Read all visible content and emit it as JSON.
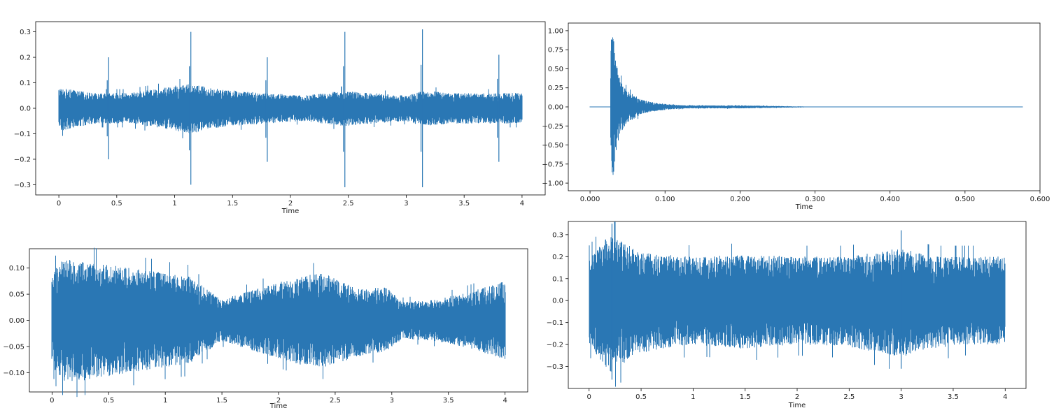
{
  "figure": {
    "wave_color": "#2a77b4",
    "background": "#ffffff"
  },
  "chart_data": [
    {
      "type": "line",
      "panel": "top-left",
      "title": "",
      "xlabel": "Time",
      "ylabel": "",
      "xlim": [
        -0.2,
        4.2
      ],
      "ylim": [
        -0.34,
        0.34
      ],
      "xticks": [
        0,
        0.5,
        1,
        1.5,
        2,
        2.5,
        3,
        3.5,
        4
      ],
      "xtick_labels": [
        "0",
        "0.5",
        "1",
        "1.5",
        "2",
        "2.5",
        "3",
        "3.5",
        "4"
      ],
      "yticks": [
        -0.3,
        -0.2,
        -0.1,
        0.0,
        0.1,
        0.2,
        0.3
      ],
      "ytick_labels": [
        "−0.3",
        "−0.2",
        "−0.1",
        "0.0",
        "0.1",
        "0.2",
        "0.3"
      ],
      "grid": false,
      "series": [
        {
          "x_range": [
            0,
            4
          ],
          "envelope": {
            "t": [
              0,
              0.3,
              0.43,
              0.6,
              0.9,
              1.14,
              1.3,
              1.5,
              1.8,
              2.1,
              2.47,
              2.7,
              3.0,
              3.14,
              3.4,
              3.6,
              3.8,
              4.0
            ],
            "upper": [
              0.08,
              0.06,
              0.06,
              0.06,
              0.08,
              0.1,
              0.08,
              0.07,
              0.06,
              0.05,
              0.07,
              0.06,
              0.05,
              0.07,
              0.06,
              0.06,
              0.06,
              0.06
            ],
            "lower": [
              -0.09,
              -0.06,
              -0.06,
              -0.06,
              -0.08,
              -0.1,
              -0.08,
              -0.07,
              -0.06,
              -0.05,
              -0.07,
              -0.06,
              -0.05,
              -0.07,
              -0.06,
              -0.06,
              -0.06,
              -0.06
            ]
          },
          "spikes": [
            {
              "t": 0.43,
              "max": 0.2,
              "min": -0.2
            },
            {
              "t": 1.14,
              "max": 0.3,
              "min": -0.3
            },
            {
              "t": 1.8,
              "max": 0.2,
              "min": -0.21
            },
            {
              "t": 2.47,
              "max": 0.3,
              "min": -0.31
            },
            {
              "t": 3.14,
              "max": 0.31,
              "min": -0.31
            },
            {
              "t": 3.8,
              "max": 0.21,
              "min": -0.21
            }
          ]
        }
      ]
    },
    {
      "type": "line",
      "panel": "top-right",
      "title": "",
      "xlabel": "Time",
      "ylabel": "",
      "xlim": [
        -0.029,
        0.6
      ],
      "ylim": [
        -1.1,
        1.1
      ],
      "xticks": [
        0.0,
        0.1,
        0.2,
        0.3,
        0.4,
        0.5,
        0.6
      ],
      "xtick_labels": [
        "0.000",
        "0.100",
        "0.200",
        "0.300",
        "0.400",
        "0.500",
        "0.600"
      ],
      "yticks": [
        -1.0,
        -0.75,
        -0.5,
        -0.25,
        0.0,
        0.25,
        0.5,
        0.75,
        1.0
      ],
      "ytick_labels": [
        "−1.00",
        "−0.75",
        "−0.50",
        "−0.25",
        "0.00",
        "0.25",
        "0.50",
        "0.75",
        "1.00"
      ],
      "grid": false,
      "series": [
        {
          "x_range": [
            0,
            0.577
          ],
          "envelope": {
            "t": [
              0,
              0.027,
              0.028,
              0.03,
              0.035,
              0.04,
              0.05,
              0.06,
              0.07,
              0.09,
              0.11,
              0.13,
              0.2,
              0.26,
              0.3,
              0.4,
              0.577
            ],
            "upper": [
              0.0,
              0.0,
              0.9,
              1.0,
              0.6,
              0.35,
              0.2,
              0.15,
              0.09,
              0.05,
              0.03,
              0.02,
              0.02,
              0.01,
              0.003,
              0.002,
              0.001
            ],
            "lower": [
              0.0,
              0.0,
              -0.9,
              -1.0,
              -0.6,
              -0.35,
              -0.2,
              -0.15,
              -0.09,
              -0.05,
              -0.03,
              -0.02,
              -0.02,
              -0.01,
              -0.003,
              -0.002,
              -0.001
            ]
          },
          "spikes": []
        }
      ]
    },
    {
      "type": "line",
      "panel": "bottom-left",
      "title": "",
      "xlabel": "Time",
      "ylabel": "",
      "xlim": [
        -0.2,
        4.2
      ],
      "ylim": [
        -0.137,
        0.137
      ],
      "xticks": [
        0,
        0.5,
        1,
        1.5,
        2,
        2.5,
        3,
        3.5,
        4
      ],
      "xtick_labels": [
        "0",
        "0.5",
        "1",
        "1.5",
        "2",
        "2.5",
        "3",
        "3.5",
        "4"
      ],
      "yticks": [
        -0.1,
        -0.05,
        0.0,
        0.05,
        0.1
      ],
      "ytick_labels": [
        "−0.10",
        "−0.05",
        "0.00",
        "0.05",
        "0.10"
      ],
      "grid": false,
      "series": [
        {
          "x_range": [
            0,
            4
          ],
          "envelope": {
            "t": [
              0,
              0.05,
              0.15,
              0.4,
              0.7,
              1.0,
              1.2,
              1.5,
              1.8,
              2.2,
              2.4,
              2.7,
              2.95,
              3.1,
              3.4,
              3.7,
              4.0
            ],
            "upper": [
              0.08,
              0.11,
              0.12,
              0.11,
              0.1,
              0.09,
              0.085,
              0.04,
              0.06,
              0.085,
              0.09,
              0.06,
              0.065,
              0.035,
              0.04,
              0.055,
              0.075
            ],
            "lower": [
              -0.08,
              -0.11,
              -0.12,
              -0.11,
              -0.1,
              -0.09,
              -0.085,
              -0.04,
              -0.06,
              -0.085,
              -0.09,
              -0.07,
              -0.06,
              -0.035,
              -0.04,
              -0.055,
              -0.075
            ]
          },
          "spikes": []
        }
      ]
    },
    {
      "type": "line",
      "panel": "bottom-right",
      "title": "",
      "xlabel": "Time",
      "ylabel": "",
      "xlim": [
        -0.2,
        4.2
      ],
      "ylim": [
        -0.4,
        0.36
      ],
      "xticks": [
        0,
        0.5,
        1,
        1.5,
        2,
        2.5,
        3,
        3.5,
        4
      ],
      "xtick_labels": [
        "0",
        "0.5",
        "1",
        "1.5",
        "2",
        "2.5",
        "3",
        "3.5",
        "4"
      ],
      "yticks": [
        -0.3,
        -0.2,
        -0.1,
        0.0,
        0.1,
        0.2,
        0.3
      ],
      "ytick_labels": [
        "−0.3",
        "−0.2",
        "−0.1",
        "0.0",
        "0.1",
        "0.2",
        "0.3"
      ],
      "grid": false,
      "series": [
        {
          "x_range": [
            0,
            4
          ],
          "envelope": {
            "t": [
              0,
              0.2,
              0.5,
              1.0,
              1.5,
              2.0,
              2.5,
              3.0,
              3.3,
              3.6,
              4.0
            ],
            "upper": [
              0.2,
              0.3,
              0.22,
              0.2,
              0.21,
              0.2,
              0.2,
              0.24,
              0.2,
              0.2,
              0.2
            ],
            "lower": [
              -0.2,
              -0.33,
              -0.24,
              -0.2,
              -0.22,
              -0.2,
              -0.21,
              -0.26,
              -0.22,
              -0.2,
              -0.2
            ]
          },
          "spikes": [
            {
              "t": 0.22,
              "max": 0.35,
              "min": -0.36
            },
            {
              "t": 3.0,
              "max": 0.32,
              "min": -0.31
            }
          ]
        }
      ]
    }
  ]
}
